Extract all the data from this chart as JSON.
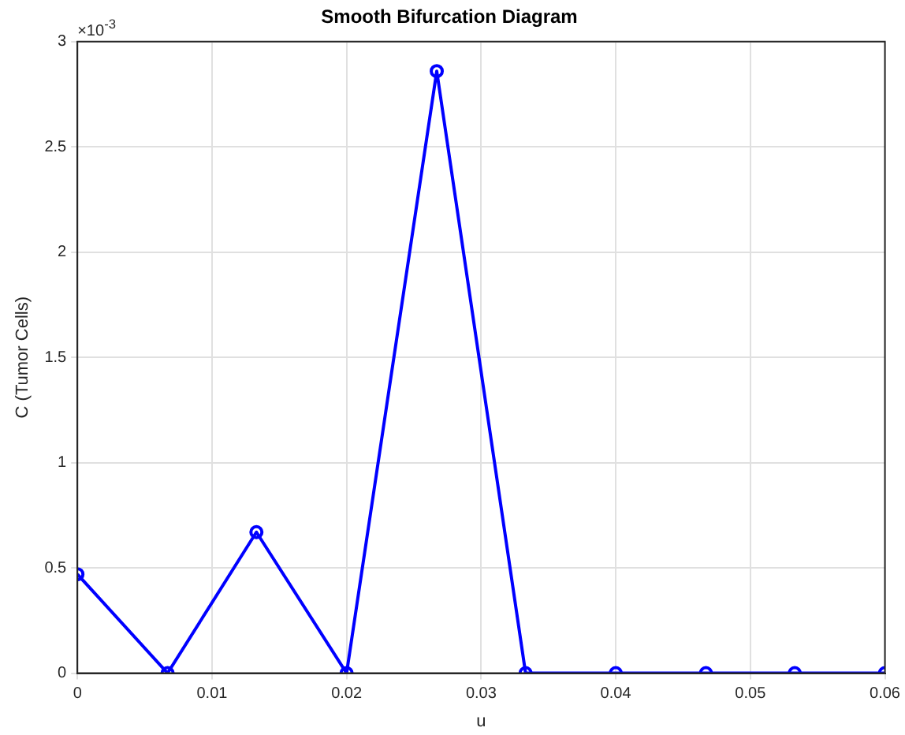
{
  "chart_data": {
    "type": "line",
    "title": "Smooth Bifurcation Diagram",
    "xlabel": "u",
    "ylabel": "C (Tumor Cells)",
    "annotations": [
      "×10$^{-3}$"
    ],
    "x": [
      0,
      0.0067,
      0.0133,
      0.02,
      0.0267,
      0.0333,
      0.04,
      0.0467,
      0.0533,
      0.06
    ],
    "series": [
      {
        "color": "#0000ff",
        "values": [
          0.47,
          0,
          0.67,
          0,
          2.86,
          0,
          0,
          0,
          0,
          0
        ]
      }
    ],
    "xlim": [
      0,
      0.06
    ],
    "xticks": [
      0,
      0.01,
      0.02,
      0.03,
      0.04,
      0.05,
      0.06
    ],
    "ylim": [
      0,
      3
    ],
    "yticks": [
      0,
      0.5,
      1,
      1.5,
      2,
      2.5,
      3
    ],
    "grid": true,
    "legend": false,
    "marker": "circle",
    "line_style": "solid"
  }
}
